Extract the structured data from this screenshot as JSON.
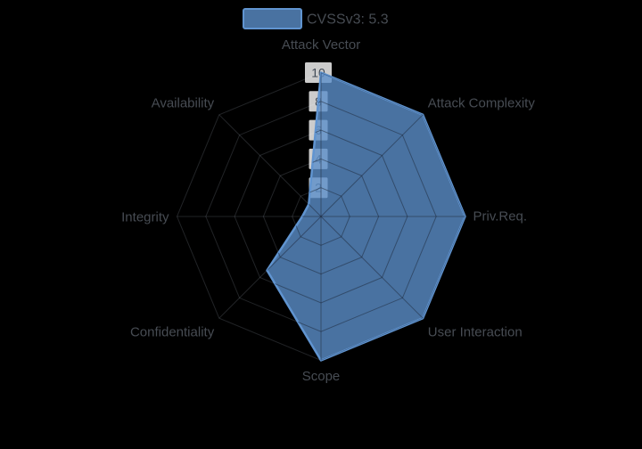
{
  "legend": {
    "label": "CVSSv3: 5.3"
  },
  "chart_data": {
    "type": "radar",
    "title": "",
    "axes": [
      "Attack Vector",
      "Attack Complexity",
      "Priv.Req.",
      "User Interaction",
      "Scope",
      "Confidentiality",
      "Integrity",
      "Availability"
    ],
    "series": [
      {
        "name": "CVSSv3: 5.3",
        "values": [
          10,
          10,
          10,
          10,
          10,
          5.3,
          1.3,
          1.2
        ]
      }
    ],
    "radial_ticks": [
      2,
      4,
      6,
      8,
      10
    ],
    "range": [
      0,
      10
    ],
    "grid": "polygonal",
    "grid_on": true,
    "legend_position": "top-center",
    "colors": {
      "background": "#000000",
      "series_line": "#6094d0",
      "series_fill": "rgba(91,142,201,0.8)",
      "grid_faint": "rgba(165,175,190,0.2)",
      "grid_dark": "rgba(22,32,48,0.5)",
      "axis_label_text": "#474c53",
      "tick_text": "#3f4854",
      "tick_box_bg": "rgba(255,255,255,0.8)"
    }
  }
}
